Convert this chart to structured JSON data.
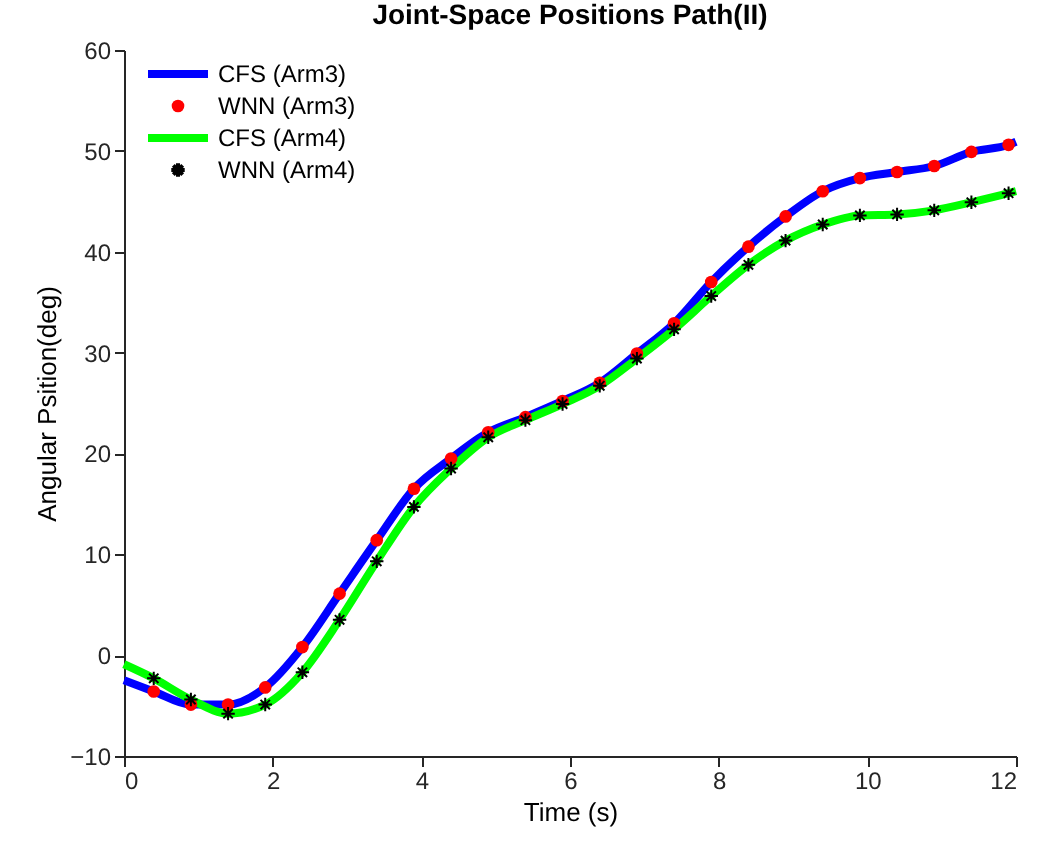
{
  "chart_data": {
    "type": "line",
    "title": "Joint-Space Positions Path(II)",
    "xlabel": "Time (s)",
    "ylabel": "Angular Psition(deg)",
    "xlim": [
      0,
      12
    ],
    "ylim": [
      -10,
      60
    ],
    "xticks": [
      0,
      2,
      4,
      6,
      8,
      10,
      12
    ],
    "yticks": [
      -10,
      0,
      10,
      20,
      30,
      40,
      50,
      60
    ],
    "grid": false,
    "legend": "top left",
    "series": [
      {
        "name": "CFS (Arm3)",
        "color": "#0000ff",
        "line_style": "solid",
        "marker": "none",
        "x": [
          0,
          0.4,
          0.9,
          1.4,
          1.9,
          2.4,
          2.9,
          3.4,
          3.9,
          4.4,
          4.9,
          5.4,
          5.9,
          6.4,
          6.9,
          7.4,
          7.9,
          8.4,
          8.9,
          9.4,
          9.9,
          10.4,
          10.9,
          11.4,
          11.9,
          12
        ],
        "values": [
          -2.5,
          -3.6,
          -4.9,
          -4.9,
          -3.2,
          0.8,
          6.1,
          11.4,
          16.5,
          19.5,
          22.1,
          23.6,
          25.2,
          27.0,
          29.9,
          32.9,
          37.0,
          40.5,
          43.5,
          46.0,
          47.3,
          47.9,
          48.5,
          49.9,
          50.6,
          50.9
        ]
      },
      {
        "name": "WNN (Arm3)",
        "type": "scatter",
        "color": "#ff0000",
        "marker": "circle",
        "x": [
          0.4,
          0.9,
          1.4,
          1.9,
          2.4,
          2.9,
          3.4,
          3.9,
          4.4,
          4.9,
          5.4,
          5.9,
          6.4,
          6.9,
          7.4,
          7.9,
          8.4,
          8.9,
          9.4,
          9.9,
          10.4,
          10.9,
          11.4,
          11.9
        ],
        "values": [
          -3.6,
          -4.9,
          -4.9,
          -3.2,
          0.8,
          6.1,
          11.4,
          16.5,
          19.5,
          22.1,
          23.6,
          25.2,
          27.0,
          29.9,
          32.9,
          37.0,
          40.5,
          43.5,
          46.0,
          47.3,
          47.9,
          48.5,
          49.9,
          50.6
        ]
      },
      {
        "name": "CFS (Arm4)",
        "color": "#00ff00",
        "line_style": "solid",
        "marker": "none",
        "x": [
          0,
          0.4,
          0.9,
          1.4,
          1.9,
          2.4,
          2.9,
          3.4,
          3.9,
          4.4,
          4.9,
          5.4,
          5.9,
          6.4,
          6.9,
          7.4,
          7.9,
          8.4,
          8.9,
          9.4,
          9.9,
          10.4,
          10.9,
          11.4,
          11.9,
          12
        ],
        "values": [
          -0.9,
          -2.3,
          -4.4,
          -5.8,
          -4.9,
          -1.7,
          3.5,
          9.3,
          14.7,
          18.5,
          21.6,
          23.3,
          24.9,
          26.7,
          29.4,
          32.3,
          35.6,
          38.7,
          41.1,
          42.7,
          43.6,
          43.7,
          44.1,
          44.9,
          45.8,
          46.0
        ]
      },
      {
        "name": "WNN (Arm4)",
        "type": "scatter",
        "color": "#000000",
        "marker": "cross",
        "x": [
          0.4,
          0.9,
          1.4,
          1.9,
          2.4,
          2.9,
          3.4,
          3.9,
          4.4,
          4.9,
          5.4,
          5.9,
          6.4,
          6.9,
          7.4,
          7.9,
          8.4,
          8.9,
          9.4,
          9.9,
          10.4,
          10.9,
          11.4,
          11.9
        ],
        "values": [
          -2.3,
          -4.4,
          -5.8,
          -4.9,
          -1.7,
          3.5,
          9.3,
          14.7,
          18.5,
          21.6,
          23.3,
          24.9,
          26.7,
          29.4,
          32.3,
          35.6,
          38.7,
          41.1,
          42.7,
          43.6,
          43.7,
          44.1,
          44.9,
          45.8
        ]
      }
    ]
  }
}
